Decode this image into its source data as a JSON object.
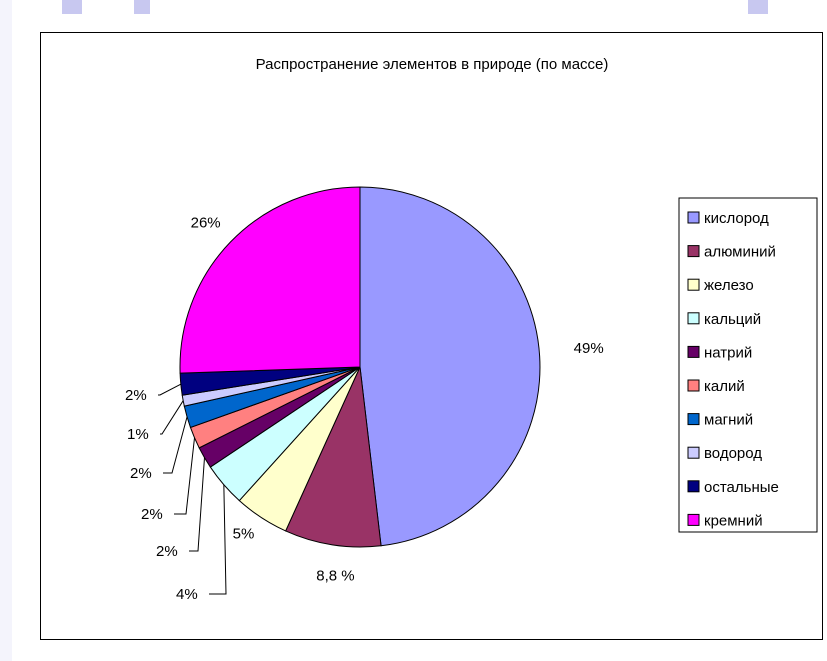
{
  "chart_data": {
    "type": "pie",
    "title": "Распространение элементов в природе (по массе)",
    "legend_position": "right",
    "slices": [
      {
        "label": "кислород",
        "value": 49,
        "display": "49%",
        "color": "#9999ff"
      },
      {
        "label": "алюминий",
        "value": 8.8,
        "display": "8,8 %",
        "color": "#993366"
      },
      {
        "label": "железо",
        "value": 5,
        "display": "5%",
        "color": "#ffffcc"
      },
      {
        "label": "кальций",
        "value": 4,
        "display": "4%",
        "color": "#ccffff"
      },
      {
        "label": "натрий",
        "value": 2,
        "display": "2%",
        "color": "#660066"
      },
      {
        "label": "калий",
        "value": 2,
        "display": "2%",
        "color": "#ff8080"
      },
      {
        "label": "магний",
        "value": 2,
        "display": "2%",
        "color": "#0066cc"
      },
      {
        "label": "водород",
        "value": 1,
        "display": "1%",
        "color": "#ccccff"
      },
      {
        "label": "остальные",
        "value": 2,
        "display": "2%",
        "color": "#000080"
      },
      {
        "label": "кремний",
        "value": 26,
        "display": "26%",
        "color": "#ff00ff"
      }
    ]
  }
}
